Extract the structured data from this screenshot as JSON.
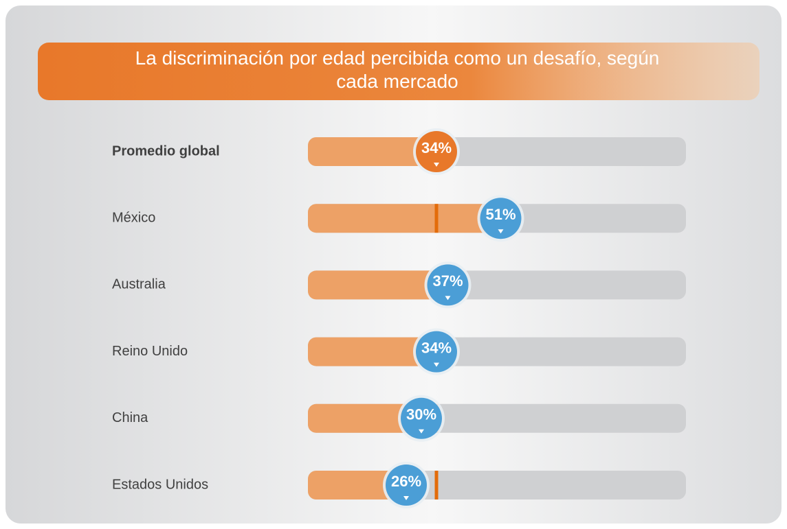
{
  "chart_data": {
    "type": "bar",
    "orientation": "horizontal",
    "title": "La discriminación por edad percibida como un desafío, según cada mercado",
    "categories": [
      "Promedio global",
      "México",
      "Australia",
      "Reino Unido",
      "China",
      "Estados Unidos"
    ],
    "values": [
      34,
      51,
      37,
      34,
      30,
      26
    ],
    "value_labels": [
      "34%",
      "51%",
      "37%",
      "34%",
      "30%",
      "26%"
    ],
    "xlim": [
      0,
      100
    ],
    "color": "#eda166",
    "track_color": "#cfd0d2",
    "marker_color": "#e36c0a",
    "colors": [
      "#e8782a",
      "#4b9ed6",
      "#4b9ed6",
      "#4b9ed6",
      "#4b9ed6",
      "#4b9ed6"
    ]
  }
}
